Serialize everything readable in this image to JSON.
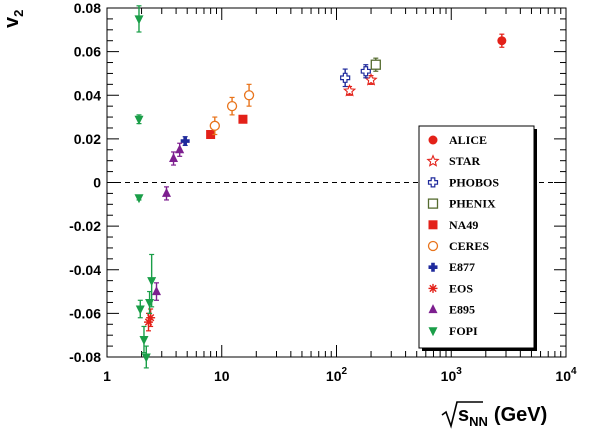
{
  "chart_data": {
    "type": "scatter",
    "title": "",
    "ylabel_main": "v",
    "ylabel_sub": "2",
    "xlabel_main": "s",
    "xlabel_sub": "NN",
    "xlabel_unit": "(GeV)",
    "xscale": "log",
    "xlim": [
      1,
      10000
    ],
    "ylim": [
      -0.08,
      0.08
    ],
    "yticks": [
      -0.08,
      -0.06,
      -0.04,
      -0.02,
      0,
      0.02,
      0.04,
      0.06,
      0.08
    ],
    "ytick_labels": [
      "-0.08",
      "-0.06",
      "-0.04",
      "-0.02",
      "0",
      "0.02",
      "0.04",
      "0.06",
      "0.08"
    ],
    "xtick_labels": [
      {
        "base": "1",
        "exp": ""
      },
      {
        "base": "10",
        "exp": ""
      },
      {
        "base": "10",
        "exp": "2"
      },
      {
        "base": "10",
        "exp": "3"
      },
      {
        "base": "10",
        "exp": "4"
      }
    ],
    "zero_line": "dashed",
    "legend_position": "right",
    "series": [
      {
        "name": "ALICE",
        "marker": "circle-filled",
        "color": "#e32119",
        "points": [
          {
            "x": 2760,
            "y": 0.065,
            "err": 0.003
          }
        ]
      },
      {
        "name": "STAR",
        "marker": "star-open",
        "color": "#e32119",
        "points": [
          {
            "x": 130,
            "y": 0.042,
            "err": 0.002
          },
          {
            "x": 200,
            "y": 0.047,
            "err": 0.002
          }
        ]
      },
      {
        "name": "PHOBOS",
        "marker": "cross-open",
        "color": "#1f2a9c",
        "points": [
          {
            "x": 119,
            "y": 0.048,
            "err": 0.004
          },
          {
            "x": 180,
            "y": 0.051,
            "err": 0.003
          }
        ]
      },
      {
        "name": "PHENIX",
        "marker": "square-open",
        "color": "#556b2f",
        "points": [
          {
            "x": 220,
            "y": 0.054,
            "err": 0.003
          }
        ]
      },
      {
        "name": "NA49",
        "marker": "square-filled",
        "color": "#e32119",
        "points": [
          {
            "x": 8,
            "y": 0.022,
            "err": 0.001
          },
          {
            "x": 15.3,
            "y": 0.029,
            "err": 0.001
          }
        ]
      },
      {
        "name": "CERES",
        "marker": "circle-open",
        "color": "#e8741c",
        "points": [
          {
            "x": 8.7,
            "y": 0.026,
            "err": 0.004
          },
          {
            "x": 12.3,
            "y": 0.035,
            "err": 0.004
          },
          {
            "x": 17.3,
            "y": 0.04,
            "err": 0.005
          }
        ]
      },
      {
        "name": "E877",
        "marker": "cross-filled",
        "color": "#1f2a9c",
        "points": [
          {
            "x": 4.8,
            "y": 0.019,
            "err": 0.002
          }
        ]
      },
      {
        "name": "EOS",
        "marker": "asterisk",
        "color": "#e32119",
        "points": [
          {
            "x": 2.3,
            "y": -0.064,
            "err": 0.004
          },
          {
            "x": 2.4,
            "y": -0.062,
            "err": 0.004
          }
        ]
      },
      {
        "name": "E895",
        "marker": "triangle-up-filled",
        "color": "#7d1f8f",
        "points": [
          {
            "x": 2.7,
            "y": -0.05,
            "err": 0.004
          },
          {
            "x": 3.3,
            "y": -0.005,
            "err": 0.003
          },
          {
            "x": 3.8,
            "y": 0.011,
            "err": 0.003
          },
          {
            "x": 4.3,
            "y": 0.015,
            "err": 0.003
          }
        ]
      },
      {
        "name": "FOPI",
        "marker": "triangle-down-filled",
        "color": "#1a9e48",
        "points": [
          {
            "x": 1.9,
            "y": 0.075,
            "err": 0.006
          },
          {
            "x": 1.9,
            "y": 0.029,
            "err": 0.002
          },
          {
            "x": 1.9,
            "y": -0.007,
            "err": 0.001
          },
          {
            "x": 1.95,
            "y": -0.058,
            "err": 0.004
          },
          {
            "x": 2.1,
            "y": -0.072,
            "err": 0.006
          },
          {
            "x": 2.2,
            "y": -0.08,
            "err": 0.005
          },
          {
            "x": 2.35,
            "y": -0.055,
            "err": 0.005
          },
          {
            "x": 2.45,
            "y": -0.045,
            "err": 0.012
          }
        ]
      }
    ]
  }
}
